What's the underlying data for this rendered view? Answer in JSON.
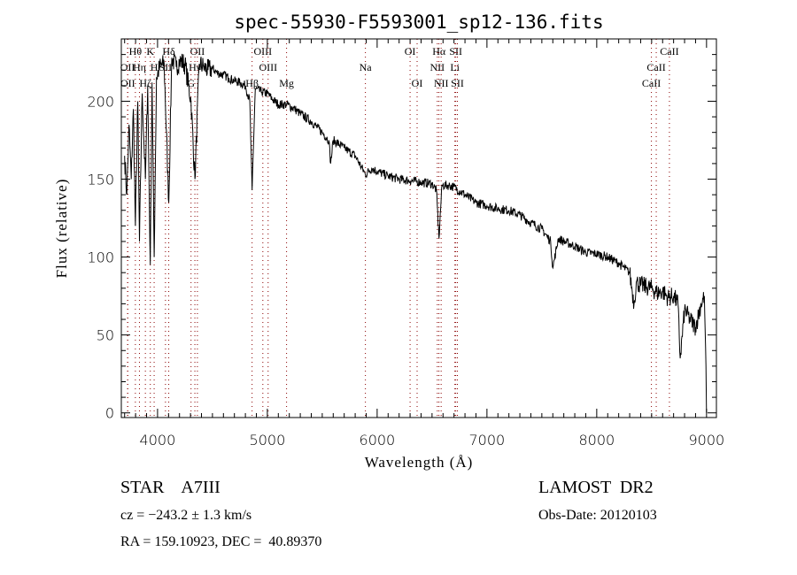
{
  "chart_data": {
    "type": "line",
    "title": "spec-55930-F5593001_sp12-136.fits",
    "xlabel": "Wavelength (Å)",
    "ylabel": "Flux (relative)",
    "xlim": [
      3670,
      9090
    ],
    "ylim": [
      -3,
      240
    ],
    "xticks": [
      4000,
      5000,
      6000,
      7000,
      8000,
      9000
    ],
    "yticks": [
      0,
      50,
      100,
      150,
      200
    ],
    "grid": false,
    "line_color": "#000000",
    "marker_color": "#8b0000",
    "series": [
      {
        "name": "flux",
        "x": [
          3700,
          3720,
          3740,
          3760,
          3780,
          3798,
          3820,
          3835,
          3860,
          3889,
          3910,
          3934,
          3950,
          3969,
          3990,
          4020,
          4060,
          4102,
          4130,
          4170,
          4200,
          4250,
          4305,
          4340,
          4380,
          4420,
          4460,
          4500,
          4550,
          4600,
          4650,
          4700,
          4750,
          4800,
          4840,
          4861,
          4890,
          4950,
          5000,
          5050,
          5100,
          5175,
          5250,
          5300,
          5400,
          5500,
          5560,
          5577,
          5600,
          5700,
          5800,
          5893,
          5950,
          6000,
          6100,
          6200,
          6300,
          6400,
          6500,
          6540,
          6563,
          6590,
          6650,
          6700,
          6800,
          6900,
          7000,
          7100,
          7200,
          7300,
          7400,
          7500,
          7580,
          7600,
          7650,
          7700,
          7800,
          7900,
          8000,
          8100,
          8200,
          8300,
          8340,
          8360,
          8400,
          8450,
          8500,
          8550,
          8600,
          8650,
          8700,
          8740,
          8760,
          8800,
          8850,
          8900,
          8950,
          8980,
          8995,
          9000
        ],
        "y": [
          165,
          140,
          185,
          150,
          195,
          120,
          200,
          110,
          205,
          150,
          210,
          95,
          212,
          100,
          215,
          222,
          224,
          135,
          228,
          222,
          226,
          224,
          200,
          150,
          224,
          222,
          220,
          221,
          218,
          217,
          215,
          213,
          212,
          210,
          200,
          143,
          208,
          206,
          205,
          201,
          198,
          198,
          195,
          192,
          187,
          180,
          175,
          160,
          175,
          170,
          165,
          153,
          157,
          155,
          152,
          150,
          149,
          148,
          147,
          143,
          112,
          146,
          146,
          145,
          140,
          135,
          133,
          131,
          130,
          127,
          122,
          118,
          110,
          93,
          112,
          110,
          107,
          103,
          102,
          100,
          96,
          90,
          70,
          84,
          82,
          81,
          80,
          77,
          78,
          74,
          75,
          70,
          35,
          66,
          60,
          55,
          70,
          75,
          30,
          0
        ]
      }
    ]
  },
  "line_markers": [
    {
      "label": "Hθ",
      "wl": 3798,
      "row": 1
    },
    {
      "label": "K",
      "wl": 3934,
      "row": 1
    },
    {
      "label": "Hδ",
      "wl": 4102,
      "row": 1
    },
    {
      "label": "OII",
      "wl": 4363,
      "row": 1
    },
    {
      "label": "OIII",
      "wl": 4959,
      "row": 1
    },
    {
      "label": "OI",
      "wl": 6300,
      "row": 1
    },
    {
      "label": "Hα",
      "wl": 6563,
      "row": 1
    },
    {
      "label": "SII",
      "wl": 6716,
      "row": 1
    },
    {
      "label": "CaII",
      "wl": 8662,
      "row": 1
    },
    {
      "label": "OII",
      "wl": 3727,
      "row": 2
    },
    {
      "label": "Hη",
      "wl": 3835,
      "row": 2
    },
    {
      "label": "H",
      "wl": 3969,
      "row": 2
    },
    {
      "label": "SII",
      "wl": 4072,
      "row": 2
    },
    {
      "label": "Hγ",
      "wl": 4340,
      "row": 2
    },
    {
      "label": "OIII",
      "wl": 5007,
      "row": 2
    },
    {
      "label": "Na",
      "wl": 5893,
      "row": 2
    },
    {
      "label": "NII",
      "wl": 6548,
      "row": 2
    },
    {
      "label": "Li",
      "wl": 6708,
      "row": 2
    },
    {
      "label": "CaII",
      "wl": 8542,
      "row": 2
    },
    {
      "label": "OII",
      "wl": 3729,
      "row": 3
    },
    {
      "label": "Hζ",
      "wl": 3889,
      "row": 3
    },
    {
      "label": "G",
      "wl": 4305,
      "row": 3
    },
    {
      "label": "Hβ",
      "wl": 4861,
      "row": 3
    },
    {
      "label": "Mg",
      "wl": 5175,
      "row": 3
    },
    {
      "label": "OI",
      "wl": 6364,
      "row": 3
    },
    {
      "label": "NII",
      "wl": 6583,
      "row": 3
    },
    {
      "label": "SII",
      "wl": 6731,
      "row": 3
    },
    {
      "label": "CaII",
      "wl": 8498,
      "row": 3
    }
  ],
  "info": {
    "object_class": "STAR    A7III",
    "survey": "LAMOST  DR2",
    "redshift": "cz = −243.2 ± 1.3 km/s",
    "obs_date": "Obs-Date: 20120103",
    "coords": "RA = 159.10923, DEC =  40.89370"
  }
}
